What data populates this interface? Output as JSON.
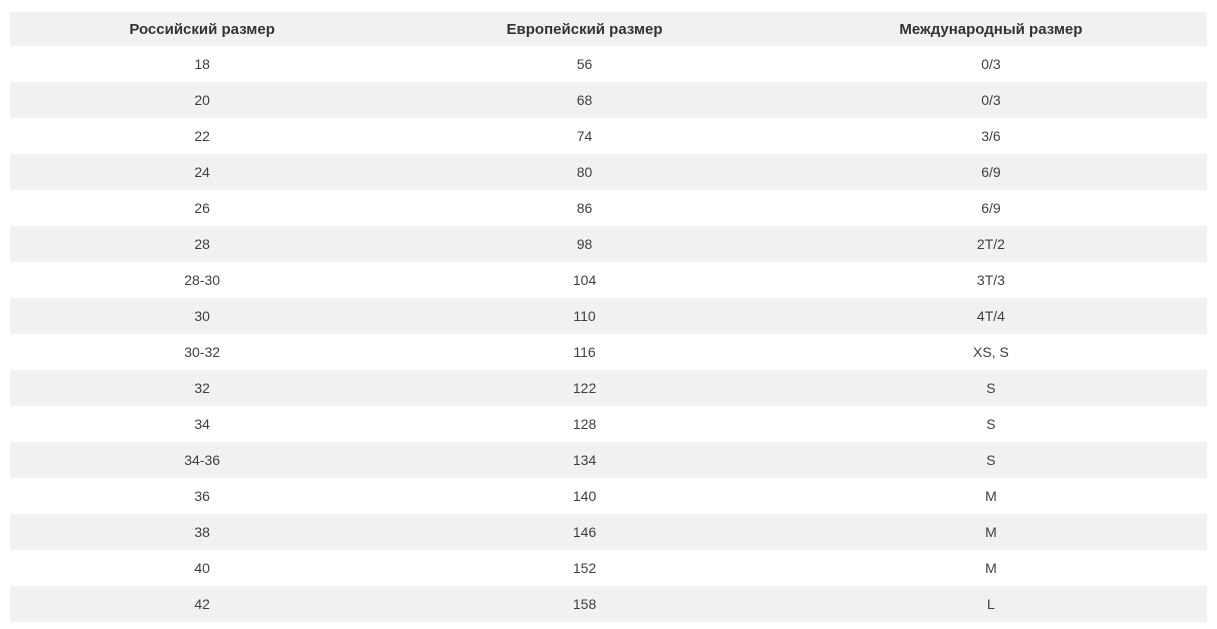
{
  "chart_data": {
    "type": "table",
    "title": "",
    "columns": [
      "Российский размер",
      "Европейский размер",
      "Международный размер"
    ],
    "rows": [
      [
        "18",
        "56",
        "0/3"
      ],
      [
        "20",
        "68",
        "0/3"
      ],
      [
        "22",
        "74",
        "3/6"
      ],
      [
        "24",
        "80",
        "6/9"
      ],
      [
        "26",
        "86",
        "6/9"
      ],
      [
        "28",
        "98",
        "2T/2"
      ],
      [
        "28-30",
        "104",
        "3T/3"
      ],
      [
        "30",
        "110",
        "4T/4"
      ],
      [
        "30-32",
        "116",
        "XS, S"
      ],
      [
        "32",
        "122",
        "S"
      ],
      [
        "34",
        "128",
        "S"
      ],
      [
        "34-36",
        "134",
        "S"
      ],
      [
        "36",
        "140",
        "M"
      ],
      [
        "38",
        "146",
        "M"
      ],
      [
        "40",
        "152",
        "M"
      ],
      [
        "42",
        "158",
        "L"
      ]
    ],
    "layout": {
      "striped": true,
      "stripe_color": "#f1f1f1",
      "row_color": "#ffffff",
      "header_bg_color": "#f1f1f1",
      "header_text_color": "#333333",
      "cell_text_color": "#3f3f3f",
      "cell_align": "center",
      "grid": false
    }
  }
}
